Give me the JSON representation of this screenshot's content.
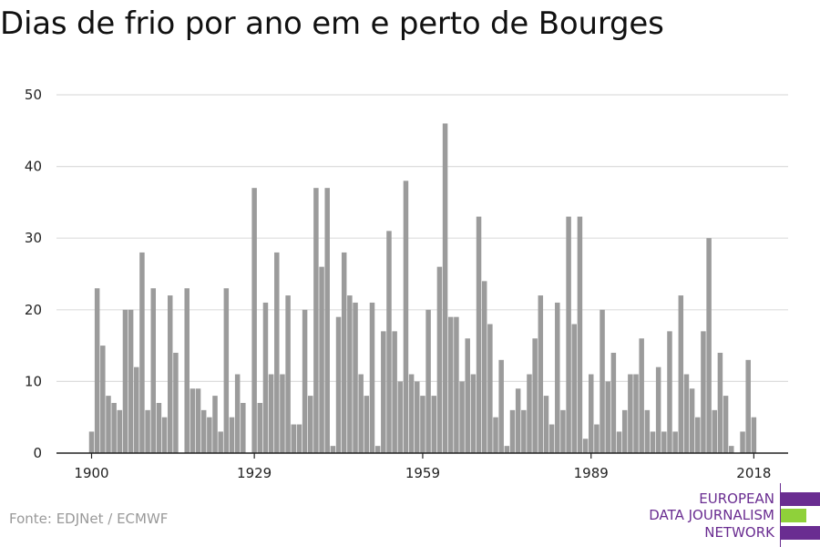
{
  "title": "Dias de frio por ano em e perto de Bourges",
  "source": "Fonte: EDJNet / ECMWF",
  "logo": {
    "line1": "EUROPEAN",
    "line2": "DATA JOURNALISM",
    "line3": "NETWORK",
    "color_primary": "#6a2d91",
    "color_accent": "#8fd13a"
  },
  "colors": {
    "bar": "#9b9b9b",
    "grid": "#dddddd",
    "axis": "#222222",
    "text": "#222222"
  },
  "chart_data": {
    "type": "bar",
    "title": "Dias de frio por ano em e perto de Bourges",
    "xlabel": "",
    "ylabel": "",
    "x_start": 1900,
    "x_end": 2018,
    "x_ticks": [
      1900,
      1929,
      1959,
      1989,
      2018
    ],
    "y_ticks": [
      0,
      10,
      20,
      30,
      40,
      50
    ],
    "ylim": [
      0,
      50
    ],
    "grid": true,
    "values": [
      3,
      23,
      15,
      8,
      7,
      6,
      20,
      20,
      12,
      28,
      6,
      23,
      7,
      5,
      22,
      14,
      0,
      23,
      9,
      9,
      6,
      5,
      8,
      3,
      23,
      5,
      11,
      7,
      0,
      37,
      7,
      21,
      11,
      28,
      11,
      22,
      4,
      4,
      20,
      8,
      37,
      26,
      37,
      1,
      19,
      28,
      22,
      21,
      11,
      8,
      21,
      1,
      17,
      31,
      17,
      10,
      38,
      11,
      10,
      8,
      20,
      8,
      26,
      46,
      19,
      19,
      10,
      16,
      11,
      33,
      24,
      18,
      5,
      13,
      1,
      6,
      9,
      6,
      11,
      16,
      22,
      8,
      4,
      21,
      6,
      33,
      18,
      33,
      2,
      11,
      4,
      20,
      10,
      14,
      3,
      6,
      11,
      11,
      16,
      6,
      3,
      12,
      3,
      17,
      3,
      22,
      11,
      9,
      5,
      17,
      30,
      6,
      14,
      8,
      1,
      0,
      3,
      13,
      5
    ]
  }
}
